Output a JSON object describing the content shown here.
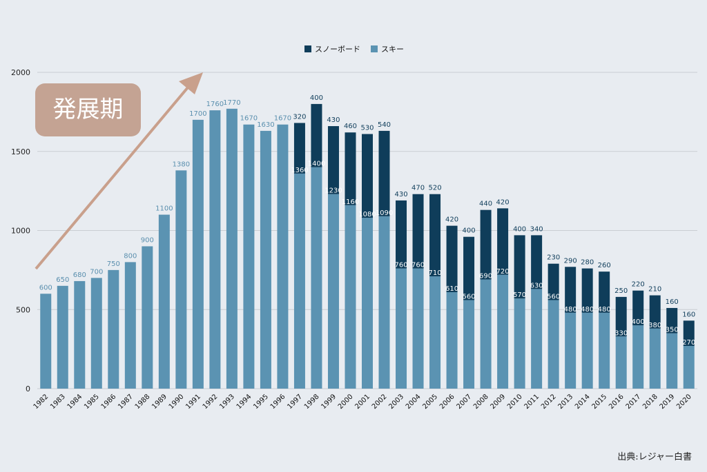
{
  "annotation": {
    "phase_label": "発展期"
  },
  "source": "出典:レジャー白書",
  "colors": {
    "snowboard": "#0f3d5a",
    "ski": "#5b93b2",
    "arrow": "#c9a08c",
    "grid": "#c9cdd2"
  },
  "chart_data": {
    "type": "bar",
    "stacked": true,
    "categories": [
      "1982",
      "1983",
      "1984",
      "1985",
      "1986",
      "1987",
      "1988",
      "1989",
      "1990",
      "1991",
      "1992",
      "1993",
      "1994",
      "1995",
      "1996",
      "1997",
      "1998",
      "1999",
      "2000",
      "2001",
      "2002",
      "2003",
      "2004",
      "2005",
      "2006",
      "2007",
      "2008",
      "2009",
      "2010",
      "2011",
      "2012",
      "2013",
      "2014",
      "2015",
      "2016",
      "2017",
      "2018",
      "2019",
      "2020"
    ],
    "series": [
      {
        "name": "スキー",
        "values": [
          600,
          650,
          680,
          700,
          750,
          800,
          900,
          1100,
          1380,
          1700,
          1760,
          1770,
          1670,
          1630,
          1670,
          1360,
          1400,
          1230,
          1160,
          1080,
          1090,
          760,
          760,
          710,
          610,
          560,
          690,
          720,
          570,
          630,
          560,
          480,
          480,
          480,
          330,
          400,
          380,
          350,
          270
        ]
      },
      {
        "name": "スノーボード",
        "values": [
          null,
          null,
          null,
          null,
          null,
          null,
          null,
          null,
          null,
          null,
          null,
          null,
          null,
          null,
          null,
          320,
          400,
          430,
          460,
          530,
          540,
          430,
          470,
          520,
          420,
          400,
          440,
          420,
          400,
          340,
          230,
          290,
          280,
          260,
          250,
          220,
          210,
          160,
          160
        ]
      }
    ],
    "legend": [
      "スノーボード",
      "スキー"
    ],
    "legend_position": "top-center",
    "yticks": [
      0,
      500,
      1000,
      1500,
      2000
    ],
    "ylim": [
      0,
      2000
    ],
    "grid": true,
    "title": "",
    "xlabel": "",
    "ylabel": ""
  }
}
